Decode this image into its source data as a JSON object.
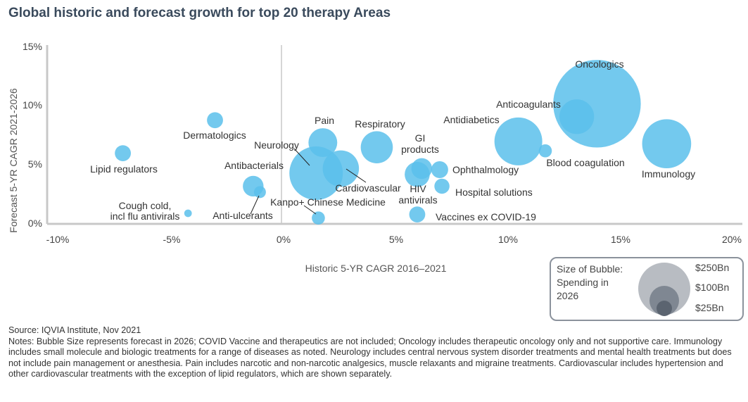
{
  "chart_data": {
    "type": "bubble",
    "title": "Global historic and forecast growth for top 20 therapy Areas",
    "xlabel": "Historic 5-YR CAGR 2016–2021",
    "ylabel": "Forecast 5-YR CAGR 2021-2026",
    "xlim": [
      -10,
      20
    ],
    "ylim": [
      0,
      15
    ],
    "xticks": [
      "-10%",
      "-5%",
      "0%",
      "5%",
      "10%",
      "15%",
      "20%"
    ],
    "yticks": [
      "0%",
      "5%",
      "10%",
      "15%"
    ],
    "bubble_color": "#5bc0eb",
    "size_unit": "Spending in 2026 ($Bn)",
    "points": [
      {
        "name": "Oncologics",
        "x": 14.0,
        "y": 10.2,
        "size": 268
      },
      {
        "name": "Anticoagulants",
        "x": 13.1,
        "y": 9.1,
        "size": 42
      },
      {
        "name": "Antidiabetics",
        "x": 10.5,
        "y": 7.0,
        "size": 80
      },
      {
        "name": "Blood coagulation",
        "x": 11.7,
        "y": 6.2,
        "size": 6
      },
      {
        "name": "Immunology",
        "x": 17.1,
        "y": 6.8,
        "size": 84
      },
      {
        "name": "Pain",
        "x": 1.8,
        "y": 6.9,
        "size": 29
      },
      {
        "name": "Respiratory",
        "x": 4.2,
        "y": 6.5,
        "size": 36
      },
      {
        "name": "Neurology",
        "x": 1.5,
        "y": 4.3,
        "size": 100
      },
      {
        "name": "Cardiovascular",
        "x": 2.6,
        "y": 4.7,
        "size": 46
      },
      {
        "name": "GI products",
        "x": 6.2,
        "y": 4.7,
        "size": 15
      },
      {
        "name": "HIV antivirals",
        "x": 6.0,
        "y": 4.2,
        "size": 22
      },
      {
        "name": "Ophthalmology",
        "x": 7.0,
        "y": 4.6,
        "size": 10
      },
      {
        "name": "Hospital solutions",
        "x": 7.1,
        "y": 3.2,
        "size": 8
      },
      {
        "name": "Vaccines ex COVID-19",
        "x": 6.0,
        "y": 0.8,
        "size": 9
      },
      {
        "name": "Kanpo+ Chinese Medicine",
        "x": 1.6,
        "y": 0.5,
        "size": 6
      },
      {
        "name": "Dermatologics",
        "x": -3.0,
        "y": 8.8,
        "size": 9
      },
      {
        "name": "Lipid regulators",
        "x": -7.1,
        "y": 6.0,
        "size": 9
      },
      {
        "name": "Antibacterials",
        "x": -1.3,
        "y": 3.2,
        "size": 15
      },
      {
        "name": "Anti-ulcerants",
        "x": -1.0,
        "y": 2.7,
        "size": 5
      },
      {
        "name": "Cough cold, incl flu antivirals",
        "x": -4.2,
        "y": 0.9,
        "size": 2
      }
    ]
  },
  "labels": {
    "oncologics": "Oncologics",
    "anticoagulants": "Anticoagulants",
    "antidiabetics": "Antidiabetics",
    "blood_coagulation": "Blood coagulation",
    "immunology": "Immunology",
    "pain": "Pain",
    "respiratory": "Respiratory",
    "neurology": "Neurology",
    "cardiovascular": "Cardiovascular",
    "gi_line1": "GI",
    "gi_line2": "products",
    "hiv_line1": "HIV",
    "hiv_line2": "antivirals",
    "ophthalmology": "Ophthalmology",
    "hospital_solutions": "Hospital solutions",
    "vaccines": "Vaccines ex COVID-19",
    "kanpo": "Kanpo+ Chinese Medicine",
    "dermatologics": "Dermatologics",
    "lipid_regulators": "Lipid regulators",
    "antibacterials": "Antibacterials",
    "anti_ulcerants": "Anti-ulcerants",
    "cough_line1": "Cough cold,",
    "cough_line2": "incl flu antivirals"
  },
  "axes": {
    "xlabel": "Historic 5-YR CAGR 2016–2021",
    "ylabel": "Forecast 5-YR CAGR 2021-2026"
  },
  "legend": {
    "title_line1": "Size of Bubble:",
    "title_line2": "Spending in",
    "title_line3": "2026",
    "size_large": "$250Bn",
    "size_mid": "$100Bn",
    "size_small": "$25Bn",
    "color_large": "#b8bcc2",
    "color_mid": "#7f8792",
    "color_small": "#5b6470"
  },
  "notes": {
    "source": "Source: IQVIA Institute, Nov 2021",
    "text": "Notes: Bubble Size represents forecast in 2026; COVID Vaccine and therapeutics are not included; Oncology includes therapeutic oncology only and not supportive care. Immunology includes small molecule and biologic treatments for a range of diseases as noted. Neurology includes central nervous system disorder treatments and mental health treatments but does not include pain management or anesthesia. Pain includes narcotic and non-narcotic analgesics, muscle relaxants and migraine treatments. Cardiovascular includes hypertension and other cardiovascular treatments with the exception of lipid regulators, which are shown separately."
  }
}
